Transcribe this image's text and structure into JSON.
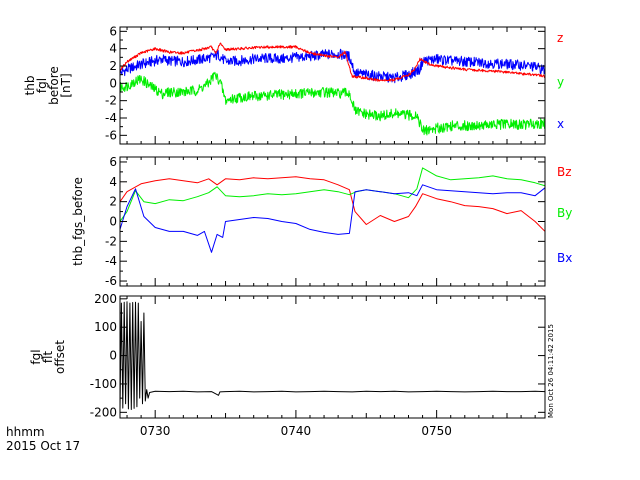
{
  "colors": {
    "red": "#ff0000",
    "green": "#00ee00",
    "blue": "#0000ff",
    "black": "#000000"
  },
  "footer": {
    "time_format": "hhmm",
    "date": "2015 Oct 17"
  },
  "timestamp_note": "Mon Oct 26 04:11:42 2015",
  "chart_data": [
    {
      "type": "line",
      "panel": "top",
      "ylabel_lines": [
        "thb",
        "fgl",
        "before",
        "[nT]"
      ],
      "ylim": [
        -7,
        6.5
      ],
      "yticks": [
        -6,
        -4,
        -2,
        0,
        2,
        4,
        6
      ],
      "xlim": [
        727.5,
        757.7
      ],
      "legend": [
        {
          "name": "z",
          "color": "#ff0000"
        },
        {
          "name": "y",
          "color": "#00ee00"
        },
        {
          "name": "x",
          "color": "#0000ff"
        }
      ],
      "series": [
        {
          "name": "x",
          "color": "#0000ff",
          "band": 0.6,
          "x": [
            727.5,
            728,
            729,
            730,
            730.5,
            731,
            732,
            733,
            734,
            734.5,
            735,
            736,
            737,
            738,
            739,
            740,
            741,
            742,
            743,
            743.8,
            744.2,
            745,
            746,
            747,
            748,
            748.8,
            749,
            750,
            751,
            752,
            753,
            754,
            755,
            756,
            757,
            757.7
          ],
          "y": [
            1.2,
            1.6,
            2.2,
            2.6,
            2.8,
            2.6,
            2.5,
            2.7,
            3.0,
            3.3,
            2.5,
            2.6,
            2.8,
            2.9,
            2.8,
            3.0,
            3.1,
            3.3,
            3.4,
            3.1,
            1.2,
            1.0,
            0.8,
            0.6,
            1.0,
            1.6,
            2.6,
            2.8,
            2.6,
            2.5,
            2.4,
            2.3,
            2.2,
            2.1,
            1.9,
            1.5
          ]
        },
        {
          "name": "y",
          "color": "#00ee00",
          "band": 0.6,
          "x": [
            727.5,
            728,
            728.5,
            729,
            729.8,
            730.5,
            731,
            732,
            733,
            733.8,
            734.2,
            734.6,
            735,
            736,
            737,
            738,
            739,
            740,
            741,
            742,
            743,
            743.8,
            744.2,
            745,
            746,
            747,
            748,
            748.6,
            749,
            750,
            751,
            752,
            753,
            754,
            755,
            756,
            757,
            757.7
          ],
          "y": [
            -0.5,
            -0.3,
            0.2,
            0.5,
            -0.5,
            -1.2,
            -1.0,
            -1.0,
            -0.8,
            0.0,
            1.0,
            0.3,
            -2.0,
            -1.6,
            -1.5,
            -1.4,
            -1.3,
            -1.2,
            -1.1,
            -1.0,
            -1.2,
            -1.1,
            -3.2,
            -3.6,
            -3.8,
            -3.5,
            -3.7,
            -3.6,
            -5.5,
            -5.2,
            -4.9,
            -4.9,
            -4.8,
            -4.8,
            -4.7,
            -4.8,
            -4.6,
            -4.7
          ]
        },
        {
          "name": "z",
          "color": "#ff0000",
          "band": 0.15,
          "x": [
            727.5,
            728,
            729,
            730,
            731,
            732,
            733,
            734,
            734.3,
            734.6,
            735,
            736,
            737,
            738,
            739,
            740,
            741,
            742,
            743,
            743.5,
            744,
            745,
            746,
            747,
            748,
            748.4,
            748.8,
            749.5,
            750,
            751,
            752,
            753,
            754,
            755,
            756,
            757,
            757.7
          ],
          "y": [
            1.5,
            2.5,
            3.5,
            4.0,
            3.6,
            3.5,
            3.8,
            4.2,
            3.4,
            4.6,
            3.9,
            4.0,
            4.1,
            4.2,
            4.2,
            4.2,
            3.5,
            3.2,
            3.0,
            3.6,
            0.8,
            0.6,
            0.3,
            0.4,
            1.0,
            1.5,
            2.8,
            2.2,
            2.0,
            1.8,
            1.6,
            1.5,
            1.4,
            1.3,
            1.1,
            1.0,
            0.8
          ]
        }
      ]
    },
    {
      "type": "line",
      "panel": "middle",
      "ylabel_lines": [
        "thb_fgs_before"
      ],
      "ylim": [
        -6.5,
        6.5
      ],
      "yticks": [
        -6,
        -4,
        -2,
        0,
        2,
        4,
        6
      ],
      "xlim": [
        727.5,
        757.7
      ],
      "legend": [
        {
          "name": "Bz",
          "color": "#ff0000"
        },
        {
          "name": "By",
          "color": "#00ee00"
        },
        {
          "name": "Bx",
          "color": "#0000ff"
        }
      ],
      "series": [
        {
          "name": "Bz",
          "color": "#ff0000",
          "x": [
            727.5,
            728,
            729,
            730,
            731,
            732,
            733,
            733.8,
            734.4,
            735,
            736,
            737,
            738,
            739,
            740,
            741,
            742,
            743,
            743.8,
            744.2,
            745,
            746,
            747,
            748,
            748.5,
            749,
            750,
            751,
            752,
            753,
            754,
            755,
            756,
            757,
            757.7
          ],
          "y": [
            2.0,
            3.0,
            3.8,
            4.1,
            4.3,
            4.1,
            3.9,
            4.3,
            3.7,
            4.3,
            4.2,
            4.4,
            4.3,
            4.4,
            4.5,
            4.3,
            4.2,
            3.7,
            3.2,
            1.0,
            -0.3,
            0.6,
            0.0,
            0.5,
            1.5,
            2.8,
            2.3,
            2.0,
            1.6,
            1.5,
            1.3,
            0.8,
            1.1,
            0.0,
            -1.0
          ]
        },
        {
          "name": "By",
          "color": "#00ee00",
          "x": [
            727.5,
            728,
            728.6,
            729.2,
            730,
            731,
            732,
            733,
            733.8,
            734.4,
            735,
            736,
            737,
            738,
            739,
            740,
            741,
            742,
            743,
            743.8,
            744.3,
            745,
            746,
            747,
            748,
            748.6,
            749,
            750,
            751,
            752,
            753,
            754,
            755,
            756,
            757,
            757.7
          ],
          "y": [
            0.0,
            1.0,
            3.1,
            2.0,
            1.8,
            2.2,
            2.1,
            2.5,
            2.9,
            3.5,
            2.6,
            2.5,
            2.6,
            2.8,
            2.7,
            2.8,
            3.0,
            3.2,
            3.0,
            2.7,
            3.0,
            3.2,
            3.0,
            2.8,
            2.4,
            3.3,
            5.4,
            4.6,
            4.2,
            4.3,
            4.4,
            4.6,
            4.3,
            4.2,
            3.9,
            3.6
          ]
        },
        {
          "name": "Bx",
          "color": "#0000ff",
          "x": [
            727.5,
            728,
            728.6,
            729.2,
            730,
            731,
            732,
            733,
            733.5,
            734,
            734.4,
            734.8,
            735,
            736,
            737,
            738,
            739,
            740,
            741,
            742,
            743,
            743.8,
            744.2,
            745,
            746,
            747,
            748,
            748.6,
            749,
            750,
            751,
            752,
            753,
            754,
            755,
            756,
            757,
            757.7
          ],
          "y": [
            -0.8,
            1.5,
            3.3,
            0.5,
            -0.6,
            -1.0,
            -1.0,
            -1.4,
            -1.0,
            -3.1,
            -1.3,
            -1.6,
            0.0,
            0.2,
            0.4,
            0.3,
            0.0,
            -0.2,
            -0.8,
            -1.1,
            -1.3,
            -1.2,
            3.0,
            3.2,
            3.0,
            2.8,
            2.9,
            2.6,
            3.7,
            3.2,
            3.1,
            3.0,
            2.9,
            2.8,
            2.9,
            2.9,
            2.6,
            3.4
          ]
        }
      ]
    },
    {
      "type": "line",
      "panel": "bottom",
      "ylabel_lines": [
        "fgl",
        "flt",
        "offset"
      ],
      "ylim": [
        -220,
        210
      ],
      "yticks": [
        -200,
        -100,
        0,
        100,
        200
      ],
      "xlim": [
        727.5,
        757.7
      ],
      "xticks": [
        730,
        740,
        750
      ],
      "xtick_labels": [
        "0730",
        "0740",
        "0750"
      ],
      "series": [
        {
          "name": "offset",
          "color": "#000000",
          "x": [
            727.5,
            727.6,
            727.7,
            727.8,
            727.9,
            728.0,
            728.1,
            728.2,
            728.3,
            728.4,
            728.5,
            728.6,
            728.7,
            728.8,
            728.9,
            729.0,
            729.1,
            729.2,
            729.3,
            729.4,
            729.5,
            729.6,
            729.8,
            730.0,
            731,
            732,
            733,
            734,
            734.5,
            734.6,
            735,
            736,
            737,
            738,
            739,
            740,
            741,
            742,
            743,
            744,
            745,
            746,
            747,
            748,
            749,
            750,
            751,
            752,
            753,
            754,
            755,
            756,
            757,
            757.7
          ],
          "y": [
            -190,
            185,
            -185,
            188,
            -170,
            190,
            -188,
            185,
            -190,
            187,
            -186,
            188,
            -180,
            185,
            -150,
            120,
            -170,
            150,
            -160,
            -120,
            -150,
            -130,
            -128,
            -126,
            -127,
            -126,
            -128,
            -127,
            -140,
            -128,
            -127,
            -126,
            -128,
            -127,
            -126,
            -128,
            -127,
            -126,
            -127,
            -128,
            -126,
            -127,
            -126,
            -128,
            -127,
            -126,
            -127,
            -128,
            -127,
            -126,
            -127,
            -127,
            -126,
            -127
          ]
        }
      ]
    }
  ]
}
